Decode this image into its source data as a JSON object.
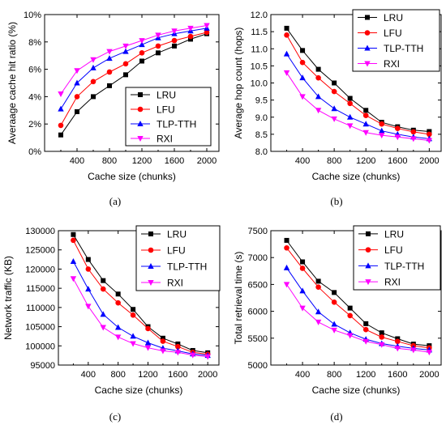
{
  "captions": [
    "(a)",
    "(b)",
    "(c)",
    "(d)"
  ],
  "chart_data": [
    {
      "type": "line",
      "caption": "(a)",
      "xlabel": "Cache size (chunks)",
      "ylabel": "Averaage cache hit ratio (%)",
      "xlim": [
        0,
        2150
      ],
      "ylim": [
        0,
        10
      ],
      "xticks": [
        400,
        800,
        1200,
        1600,
        2000
      ],
      "xtick_labels": [
        "400",
        "800",
        "1200",
        "1600",
        "2000"
      ],
      "yticks": [
        0,
        2,
        4,
        6,
        8,
        10
      ],
      "ytick_labels": [
        "0%",
        "2%",
        "4%",
        "6%",
        "8%",
        "10%"
      ],
      "legend_position": "bottom-right",
      "x": [
        200,
        400,
        600,
        800,
        1000,
        1200,
        1400,
        1600,
        1800,
        2000
      ],
      "series": [
        {
          "name": "LRU",
          "color": "#000000",
          "marker": "square",
          "values": [
            1.2,
            2.9,
            4.0,
            4.8,
            5.6,
            6.6,
            7.2,
            7.7,
            8.2,
            8.6
          ]
        },
        {
          "name": "LFU",
          "color": "#ff0000",
          "marker": "circle",
          "values": [
            1.9,
            4.0,
            5.1,
            5.8,
            6.4,
            7.2,
            7.7,
            8.1,
            8.4,
            8.7
          ]
        },
        {
          "name": "TLP-TTH",
          "color": "#0000ff",
          "marker": "triangle-up",
          "values": [
            3.1,
            5.0,
            6.1,
            6.8,
            7.3,
            7.8,
            8.3,
            8.6,
            8.8,
            9.0
          ]
        },
        {
          "name": "RXI",
          "color": "#ff00ff",
          "marker": "triangle-down",
          "values": [
            4.2,
            5.9,
            6.7,
            7.3,
            7.7,
            8.1,
            8.5,
            8.8,
            9.0,
            9.2
          ]
        }
      ]
    },
    {
      "type": "line",
      "caption": "(b)",
      "xlabel": "Cache size (chunks)",
      "ylabel": "Average hop count (hops)",
      "xlim": [
        0,
        2150
      ],
      "ylim": [
        8.0,
        12.0
      ],
      "xticks": [
        400,
        800,
        1200,
        1600,
        2000
      ],
      "xtick_labels": [
        "400",
        "800",
        "1200",
        "1600",
        "2000"
      ],
      "yticks": [
        8.0,
        8.5,
        9.0,
        9.5,
        10.0,
        10.5,
        11.0,
        11.5,
        12.0
      ],
      "ytick_labels": [
        "8.0",
        "8.5",
        "9.0",
        "9.5",
        "10.0",
        "10.5",
        "11.0",
        "11.5",
        "12.0"
      ],
      "legend_position": "top-right",
      "x": [
        200,
        400,
        600,
        800,
        1000,
        1200,
        1400,
        1600,
        1800,
        2000
      ],
      "series": [
        {
          "name": "LRU",
          "color": "#000000",
          "marker": "square",
          "values": [
            11.6,
            10.95,
            10.4,
            10.0,
            9.55,
            9.2,
            8.85,
            8.72,
            8.62,
            8.58
          ]
        },
        {
          "name": "LFU",
          "color": "#ff0000",
          "marker": "circle",
          "values": [
            11.4,
            10.6,
            10.15,
            9.75,
            9.4,
            9.05,
            8.8,
            8.67,
            8.57,
            8.5
          ]
        },
        {
          "name": "TLP-TTH",
          "color": "#0000ff",
          "marker": "triangle-up",
          "values": [
            10.85,
            10.15,
            9.6,
            9.25,
            9.0,
            8.8,
            8.6,
            8.5,
            8.42,
            8.37
          ]
        },
        {
          "name": "RXI",
          "color": "#ff00ff",
          "marker": "triangle-down",
          "values": [
            10.3,
            9.6,
            9.2,
            8.95,
            8.75,
            8.55,
            8.47,
            8.42,
            8.37,
            8.32
          ]
        }
      ]
    },
    {
      "type": "line",
      "caption": "(c)",
      "xlabel": "Cache size (chunks)",
      "ylabel": "Network traffic (KB)",
      "xlim": [
        0,
        2150
      ],
      "ylim": [
        95000,
        130000
      ],
      "xticks": [
        400,
        800,
        1200,
        1600,
        2000
      ],
      "xtick_labels": [
        "400",
        "800",
        "1200",
        "1600",
        "2000"
      ],
      "yticks": [
        95000,
        100000,
        105000,
        110000,
        115000,
        120000,
        125000,
        130000
      ],
      "ytick_labels": [
        "95000",
        "100000",
        "105000",
        "110000",
        "115000",
        "120000",
        "125000",
        "130000"
      ],
      "legend_position": "top-right",
      "x": [
        200,
        400,
        600,
        800,
        1000,
        1200,
        1400,
        1600,
        1800,
        2000
      ],
      "series": [
        {
          "name": "LRU",
          "color": "#000000",
          "marker": "square",
          "values": [
            129000,
            122500,
            117000,
            113500,
            109500,
            105000,
            102000,
            100500,
            98800,
            98200
          ]
        },
        {
          "name": "LFU",
          "color": "#ff0000",
          "marker": "circle",
          "values": [
            127500,
            120000,
            114800,
            111200,
            108000,
            104500,
            101200,
            99800,
            98300,
            97800
          ]
        },
        {
          "name": "TLP-TTH",
          "color": "#0000ff",
          "marker": "triangle-up",
          "values": [
            122000,
            114800,
            108200,
            104800,
            102500,
            100800,
            99400,
            98700,
            97900,
            97500
          ]
        },
        {
          "name": "RXI",
          "color": "#ff00ff",
          "marker": "triangle-down",
          "values": [
            117500,
            110300,
            104800,
            102300,
            100600,
            99500,
            98700,
            98300,
            97600,
            97200
          ]
        }
      ]
    },
    {
      "type": "line",
      "caption": "(d)",
      "xlabel": "Cache size (chunks)",
      "ylabel": "Total retrieval time (s)",
      "xlim": [
        0,
        2150
      ],
      "ylim": [
        5000,
        7500
      ],
      "xticks": [
        400,
        800,
        1200,
        1600,
        2000
      ],
      "xtick_labels": [
        "400",
        "800",
        "1200",
        "1600",
        "2000"
      ],
      "yticks": [
        5000,
        5500,
        6000,
        6500,
        7000,
        7500
      ],
      "ytick_labels": [
        "5000",
        "5500",
        "6000",
        "6500",
        "7000",
        "7500"
      ],
      "legend_position": "top-right",
      "x": [
        200,
        400,
        600,
        800,
        1000,
        1200,
        1400,
        1600,
        1800,
        2000
      ],
      "series": [
        {
          "name": "LRU",
          "color": "#000000",
          "marker": "square",
          "values": [
            7320,
            6920,
            6560,
            6350,
            6060,
            5770,
            5600,
            5490,
            5390,
            5360
          ]
        },
        {
          "name": "LFU",
          "color": "#ff0000",
          "marker": "circle",
          "values": [
            7180,
            6800,
            6450,
            6170,
            5920,
            5660,
            5520,
            5440,
            5360,
            5320
          ]
        },
        {
          "name": "TLP-TTH",
          "color": "#0000ff",
          "marker": "triangle-up",
          "values": [
            6810,
            6380,
            5990,
            5760,
            5600,
            5480,
            5400,
            5350,
            5310,
            5280
          ]
        },
        {
          "name": "RXI",
          "color": "#ff00ff",
          "marker": "triangle-down",
          "values": [
            6500,
            6060,
            5800,
            5650,
            5550,
            5440,
            5380,
            5310,
            5280,
            5240
          ]
        }
      ]
    }
  ]
}
